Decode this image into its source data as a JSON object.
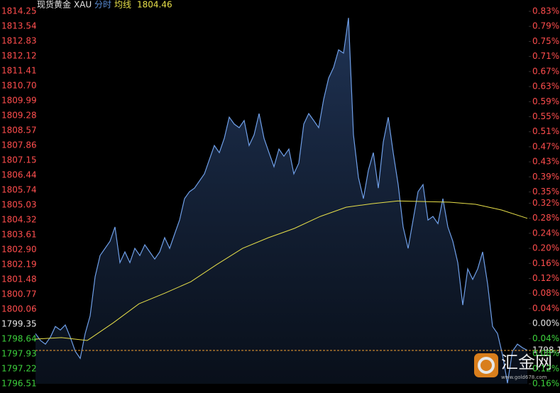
{
  "chart_data": {
    "type": "line",
    "header": {
      "name": "现货黄金",
      "code": "XAU",
      "mode": "分时",
      "avg_label": "均线",
      "avg_value": "1804.46"
    },
    "ylim": [
      1796.51,
      1814.25
    ],
    "yticks": [
      1814.25,
      1813.54,
      1812.83,
      1812.12,
      1811.41,
      {
        "value": 1810.7,
        "label": "1810.70"
      },
      1809.99,
      1809.28,
      1808.57,
      1807.86,
      1807.15,
      1806.44,
      1805.74,
      1805.03,
      1804.32,
      1803.61,
      {
        "value": 1802.9,
        "label": "1802.90"
      },
      1802.19,
      1801.48,
      1800.77,
      1800.06,
      1799.35,
      1798.64,
      1797.93,
      1797.22,
      1796.51
    ],
    "y2lim": [
      -0.16,
      0.83
    ],
    "y2ticks": [
      {
        "value": 0.83,
        "label": "0.83%"
      },
      {
        "value": 0.79,
        "label": "0.79%"
      },
      {
        "value": 0.75,
        "label": "0.75%"
      },
      {
        "value": 0.71,
        "label": "0.71%"
      },
      {
        "value": 0.67,
        "label": "0.67%"
      },
      {
        "value": 0.63,
        "label": "0.63%"
      },
      {
        "value": 0.59,
        "label": "0.59%"
      },
      {
        "value": 0.55,
        "label": "0.55%"
      },
      {
        "value": 0.51,
        "label": "0.51%"
      },
      {
        "value": 0.47,
        "label": "0.47%"
      },
      {
        "value": 0.43,
        "label": "0.43%"
      },
      {
        "value": 0.39,
        "label": "0.39%"
      },
      {
        "value": 0.35,
        "label": "0.35%"
      },
      {
        "value": 0.32,
        "label": "0.32%"
      },
      {
        "value": 0.28,
        "label": "0.28%"
      },
      {
        "value": 0.24,
        "label": "0.24%"
      },
      {
        "value": 0.2,
        "label": "0.20%"
      },
      {
        "value": 0.16,
        "label": "0.16%"
      },
      {
        "value": 0.12,
        "label": "0.12%"
      },
      {
        "value": 0.08,
        "label": "0.08%"
      },
      {
        "value": 0.04,
        "label": "0.04%"
      },
      {
        "value": 0,
        "label": "0.00%"
      },
      {
        "value": -0.04,
        "label": "0.04%"
      },
      {
        "value": -0.08,
        "label": "0.08%"
      },
      {
        "value": -0.12,
        "label": "0.12%"
      },
      {
        "value": -0.16,
        "label": "0.16%"
      }
    ],
    "last_price": {
      "value": 1798.1,
      "label": "1798.1"
    },
    "series": [
      {
        "color": "#6f9fe8",
        "values": [
          1798.9,
          1798.57,
          1798.4,
          1798.73,
          1799.24,
          1799.07,
          1799.31,
          1798.73,
          1798.06,
          1797.72,
          1798.9,
          1799.75,
          1801.61,
          1802.62,
          1802.96,
          1803.3,
          1803.98,
          1802.28,
          1802.79,
          1802.28,
          1802.96,
          1802.62,
          1803.13,
          1802.79,
          1802.45,
          1802.79,
          1803.47,
          1802.96,
          1803.64,
          1804.31,
          1805.33,
          1805.66,
          1805.83,
          1806.17,
          1806.51,
          1807.19,
          1807.86,
          1807.52,
          1808.2,
          1809.21,
          1808.88,
          1808.71,
          1809.05,
          1807.86,
          1808.37,
          1809.38,
          1808.2,
          1807.52,
          1806.85,
          1807.69,
          1807.35,
          1807.69,
          1806.51,
          1807.02,
          1808.88,
          1809.38,
          1809.05,
          1808.71,
          1810.06,
          1811.07,
          1811.58,
          1812.42,
          1812.26,
          1813.94,
          1808.37,
          1806.34,
          1805.33,
          1806.68,
          1807.52,
          1805.83,
          1808.03,
          1809.21,
          1807.52,
          1806.0,
          1803.98,
          1802.96,
          1804.31,
          1805.66,
          1806.0,
          1804.31,
          1804.48,
          1804.14,
          1805.33,
          1803.98,
          1803.3,
          1802.28,
          1800.26,
          1801.98,
          1801.48,
          1801.98,
          1802.79,
          1801.27,
          1799.24,
          1798.9,
          1797.89,
          1796.54,
          1798.06,
          1798.4,
          1798.23,
          1798.1
        ]
      },
      {
        "color": "#e8e04a",
        "values": [
          1798.64,
          1798.71,
          1798.57,
          1799.41,
          1800.32,
          1800.83,
          1801.37,
          1802.19,
          1802.96,
          1803.47,
          1803.91,
          1804.48,
          1804.92,
          1805.09,
          1805.22,
          1805.19,
          1805.16,
          1805.06,
          1804.79,
          1804.39
        ]
      }
    ],
    "watermark": {
      "brand": "汇金网",
      "url": "www.gold678.com"
    }
  }
}
